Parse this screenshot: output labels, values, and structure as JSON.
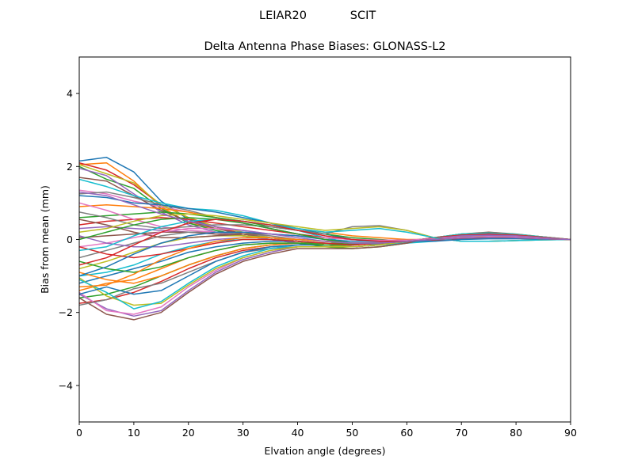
{
  "figure": {
    "suptitle_left": "LEIAR20",
    "suptitle_right": "SCIT"
  },
  "chart_data": {
    "type": "line",
    "title": "Delta Antenna Phase Biases: GLONASS-L2",
    "xlabel": "Elvation angle (degrees)",
    "ylabel": "Bias from mean (mm)",
    "xlim": [
      0,
      90
    ],
    "ylim": [
      -5,
      5
    ],
    "xticks": [
      0,
      10,
      20,
      30,
      40,
      50,
      60,
      70,
      80,
      90
    ],
    "yticks": [
      -4,
      -2,
      0,
      2,
      4
    ],
    "ytick_labels": [
      "−4",
      "−2",
      "0",
      "2",
      "4"
    ],
    "grid": false,
    "x": [
      0,
      5,
      10,
      15,
      20,
      25,
      30,
      35,
      40,
      45,
      50,
      55,
      60,
      65,
      70,
      75,
      80,
      85,
      90
    ],
    "colors": [
      "#1f77b4",
      "#ff7f0e",
      "#2ca02c",
      "#d62728",
      "#9467bd",
      "#8c564b",
      "#e377c2",
      "#7f7f7f",
      "#bcbd22",
      "#17becf"
    ],
    "series": [
      {
        "values": [
          2.15,
          2.25,
          1.85,
          1.05,
          0.55,
          0.35,
          0.15,
          0.05,
          -0.05,
          -0.15,
          -0.2,
          -0.15,
          -0.05,
          0.05,
          0.1,
          0.1,
          0.08,
          0.04,
          0
        ]
      },
      {
        "values": [
          2.05,
          2.1,
          1.6,
          0.9,
          0.45,
          0.3,
          0.15,
          0.05,
          -0.05,
          -0.15,
          -0.2,
          -0.15,
          -0.05,
          0.05,
          0.1,
          0.1,
          0.08,
          0.04,
          0
        ]
      },
      {
        "values": [
          2.0,
          1.65,
          1.4,
          0.85,
          0.45,
          0.25,
          0.1,
          0.0,
          -0.1,
          -0.2,
          -0.25,
          -0.2,
          -0.1,
          0.0,
          0.05,
          0.07,
          0.05,
          0.03,
          0
        ]
      },
      {
        "values": [
          2.1,
          1.9,
          1.5,
          0.95,
          0.6,
          0.35,
          0.15,
          0.05,
          -0.05,
          -0.15,
          -0.2,
          -0.15,
          -0.05,
          0.05,
          0.1,
          0.1,
          0.08,
          0.04,
          0
        ]
      },
      {
        "values": [
          1.95,
          1.75,
          1.25,
          0.75,
          0.4,
          0.2,
          0.1,
          0.0,
          -0.1,
          -0.15,
          -0.2,
          -0.15,
          -0.05,
          0.05,
          0.1,
          0.1,
          0.07,
          0.03,
          0
        ]
      },
      {
        "values": [
          1.7,
          1.6,
          1.2,
          0.8,
          0.5,
          0.3,
          0.15,
          0.05,
          -0.05,
          -0.15,
          -0.2,
          -0.15,
          -0.05,
          0.05,
          0.1,
          0.1,
          0.07,
          0.03,
          0
        ]
      },
      {
        "values": [
          1.35,
          1.25,
          1.05,
          0.9,
          0.75,
          0.6,
          0.45,
          0.3,
          0.15,
          0.0,
          -0.1,
          -0.12,
          -0.08,
          -0.02,
          0.05,
          0.08,
          0.07,
          0.03,
          0
        ]
      },
      {
        "values": [
          1.25,
          1.3,
          1.15,
          0.95,
          0.8,
          0.6,
          0.45,
          0.3,
          0.15,
          0.0,
          -0.1,
          -0.12,
          -0.08,
          -0.02,
          0.05,
          0.08,
          0.07,
          0.03,
          0
        ]
      },
      {
        "values": [
          2.05,
          1.8,
          1.55,
          0.95,
          0.6,
          0.35,
          0.2,
          0.05,
          -0.05,
          -0.15,
          -0.2,
          -0.15,
          -0.05,
          0.05,
          0.1,
          0.1,
          0.07,
          0.03,
          0
        ]
      },
      {
        "values": [
          1.65,
          1.45,
          1.2,
          1.0,
          0.85,
          0.8,
          0.65,
          0.45,
          0.25,
          0.05,
          -0.1,
          -0.15,
          -0.1,
          -0.05,
          0.03,
          0.07,
          0.06,
          0.03,
          0
        ]
      },
      {
        "values": [
          1.2,
          1.15,
          1.0,
          0.95,
          0.85,
          0.75,
          0.6,
          0.45,
          0.3,
          0.15,
          0.0,
          -0.05,
          -0.05,
          0.0,
          0.05,
          0.07,
          0.05,
          0.02,
          0
        ]
      },
      {
        "values": [
          0.9,
          0.95,
          0.9,
          0.85,
          0.75,
          0.6,
          0.5,
          0.4,
          0.3,
          0.2,
          0.1,
          0.05,
          0.0,
          0.0,
          0.03,
          0.05,
          0.04,
          0.02,
          0
        ]
      },
      {
        "values": [
          0.6,
          0.65,
          0.7,
          0.75,
          0.7,
          0.6,
          0.5,
          0.35,
          0.25,
          0.15,
          0.05,
          0.0,
          -0.05,
          -0.02,
          0.02,
          0.05,
          0.04,
          0.02,
          0
        ]
      },
      {
        "values": [
          0.4,
          0.5,
          0.55,
          0.6,
          0.55,
          0.45,
          0.35,
          0.25,
          0.15,
          0.05,
          0.0,
          -0.05,
          -0.05,
          -0.02,
          0.02,
          0.04,
          0.04,
          0.02,
          0
        ]
      },
      {
        "values": [
          0.3,
          0.35,
          0.3,
          0.25,
          0.2,
          0.15,
          0.1,
          0.05,
          0.0,
          -0.05,
          -0.1,
          -0.1,
          -0.05,
          0.0,
          0.04,
          0.06,
          0.05,
          0.02,
          0
        ]
      },
      {
        "values": [
          0.05,
          0.1,
          0.15,
          0.2,
          0.2,
          0.15,
          0.1,
          0.05,
          0.0,
          -0.05,
          -0.1,
          -0.1,
          -0.05,
          0.0,
          0.04,
          0.06,
          0.05,
          0.02,
          0
        ]
      },
      {
        "values": [
          -0.2,
          -0.1,
          0.05,
          0.2,
          0.3,
          0.3,
          0.25,
          0.15,
          0.1,
          0.0,
          -0.1,
          -0.1,
          -0.05,
          0.0,
          0.04,
          0.06,
          0.05,
          0.02,
          0
        ]
      },
      {
        "values": [
          -0.5,
          -0.3,
          -0.1,
          0.1,
          0.2,
          0.2,
          0.15,
          0.1,
          0.0,
          -0.05,
          -0.1,
          -0.1,
          -0.05,
          0.0,
          0.04,
          0.06,
          0.05,
          0.02,
          0
        ]
      },
      {
        "values": [
          -0.8,
          -0.6,
          -0.35,
          -0.1,
          0.05,
          0.1,
          0.1,
          0.05,
          0.0,
          -0.05,
          -0.1,
          -0.1,
          -0.05,
          0.0,
          0.04,
          0.06,
          0.05,
          0.02,
          0
        ]
      },
      {
        "values": [
          -1.0,
          -0.9,
          -0.7,
          -0.4,
          -0.2,
          -0.05,
          0.0,
          0.0,
          -0.05,
          -0.1,
          -0.12,
          -0.1,
          -0.05,
          0.0,
          0.04,
          0.06,
          0.05,
          0.02,
          0
        ]
      },
      {
        "values": [
          -1.2,
          -1.0,
          -0.8,
          -0.6,
          -0.35,
          -0.2,
          -0.1,
          -0.05,
          -0.05,
          -0.1,
          -0.12,
          -0.1,
          -0.05,
          0.0,
          0.04,
          0.06,
          0.05,
          0.02,
          0
        ]
      },
      {
        "values": [
          -1.4,
          -1.2,
          -1.1,
          -0.8,
          -0.5,
          -0.3,
          -0.15,
          -0.1,
          -0.1,
          -0.1,
          -0.12,
          -0.1,
          -0.05,
          0.0,
          0.04,
          0.06,
          0.05,
          0.02,
          0
        ]
      },
      {
        "values": [
          -1.6,
          -1.5,
          -1.3,
          -1.0,
          -0.7,
          -0.45,
          -0.25,
          -0.15,
          -0.1,
          -0.1,
          -0.12,
          -0.1,
          -0.05,
          0.0,
          0.04,
          0.06,
          0.05,
          0.02,
          0
        ]
      },
      {
        "values": [
          -1.75,
          -1.65,
          -1.45,
          -1.15,
          -0.8,
          -0.5,
          -0.3,
          -0.2,
          -0.15,
          -0.15,
          -0.15,
          -0.1,
          -0.05,
          0.0,
          0.05,
          0.07,
          0.05,
          0.02,
          0
        ]
      },
      {
        "values": [
          -1.5,
          -1.9,
          -2.1,
          -1.95,
          -1.4,
          -0.9,
          -0.55,
          -0.35,
          -0.2,
          -0.2,
          -0.2,
          -0.15,
          -0.05,
          0.05,
          0.1,
          0.12,
          0.1,
          0.05,
          0
        ]
      },
      {
        "values": [
          -1.6,
          -2.05,
          -2.2,
          -2.0,
          -1.45,
          -0.95,
          -0.6,
          -0.4,
          -0.25,
          -0.25,
          -0.25,
          -0.2,
          -0.1,
          0.05,
          0.15,
          0.2,
          0.15,
          0.07,
          0
        ]
      },
      {
        "values": [
          -1.45,
          -1.95,
          -2.05,
          -1.85,
          -1.3,
          -0.85,
          -0.5,
          -0.3,
          -0.2,
          -0.2,
          -0.2,
          -0.15,
          -0.05,
          0.05,
          0.15,
          0.18,
          0.14,
          0.07,
          0
        ]
      },
      {
        "values": [
          -1.8,
          -1.65,
          -1.35,
          -1.2,
          -0.9,
          -0.6,
          -0.35,
          -0.25,
          -0.2,
          -0.2,
          -0.2,
          -0.15,
          -0.05,
          0.05,
          0.15,
          0.18,
          0.14,
          0.07,
          0
        ]
      },
      {
        "values": [
          -1.05,
          -1.55,
          -1.8,
          -1.75,
          -1.25,
          -0.8,
          -0.5,
          -0.3,
          -0.2,
          -0.2,
          -0.2,
          -0.15,
          -0.05,
          0.05,
          0.15,
          0.18,
          0.14,
          0.07,
          0
        ]
      },
      {
        "values": [
          -1.1,
          -1.45,
          -1.9,
          -1.7,
          -1.2,
          -0.75,
          -0.45,
          -0.25,
          -0.15,
          -0.15,
          -0.15,
          -0.1,
          -0.05,
          0.05,
          0.15,
          0.18,
          0.14,
          0.07,
          0
        ]
      },
      {
        "values": [
          -1.5,
          -1.3,
          -1.5,
          -1.4,
          -1.0,
          -0.6,
          -0.35,
          -0.2,
          -0.15,
          -0.15,
          -0.15,
          -0.1,
          -0.05,
          0.05,
          0.12,
          0.15,
          0.12,
          0.06,
          0
        ]
      },
      {
        "values": [
          -0.9,
          -1.1,
          -1.2,
          -1.0,
          -0.7,
          -0.45,
          -0.25,
          -0.15,
          -0.1,
          -0.15,
          -0.15,
          -0.1,
          -0.05,
          0.05,
          0.12,
          0.15,
          0.12,
          0.06,
          0
        ]
      },
      {
        "values": [
          -0.6,
          -0.8,
          -0.9,
          -0.75,
          -0.5,
          -0.3,
          -0.15,
          -0.1,
          -0.1,
          -0.15,
          -0.15,
          -0.1,
          -0.05,
          0.05,
          0.12,
          0.15,
          0.12,
          0.06,
          0
        ]
      },
      {
        "values": [
          -0.2,
          -0.4,
          -0.5,
          -0.4,
          -0.25,
          -0.1,
          0.0,
          0.0,
          -0.05,
          -0.1,
          -0.15,
          -0.1,
          -0.05,
          0.05,
          0.12,
          0.15,
          0.12,
          0.06,
          0
        ]
      },
      {
        "values": [
          0.1,
          -0.1,
          -0.2,
          -0.2,
          -0.1,
          0.0,
          0.05,
          0.05,
          0.0,
          -0.05,
          -0.1,
          -0.08,
          -0.03,
          0.03,
          0.1,
          0.12,
          0.1,
          0.05,
          0
        ]
      },
      {
        "values": [
          0.55,
          0.4,
          0.2,
          0.05,
          0.05,
          0.1,
          0.15,
          0.15,
          0.1,
          0.05,
          0.0,
          -0.02,
          -0.02,
          0.02,
          0.06,
          0.08,
          0.07,
          0.03,
          0
        ]
      },
      {
        "values": [
          1.0,
          0.8,
          0.55,
          0.35,
          0.25,
          0.2,
          0.2,
          0.15,
          0.1,
          0.05,
          0.0,
          -0.02,
          -0.02,
          0.02,
          0.06,
          0.08,
          0.07,
          0.03,
          0
        ]
      },
      {
        "values": [
          0.75,
          0.6,
          0.4,
          0.3,
          0.35,
          0.4,
          0.4,
          0.35,
          0.25,
          0.15,
          0.35,
          0.38,
          0.25,
          0.05,
          -0.05,
          -0.05,
          -0.03,
          -0.01,
          0
        ]
      },
      {
        "values": [
          0.2,
          0.3,
          0.5,
          0.65,
          0.7,
          0.65,
          0.55,
          0.45,
          0.35,
          0.25,
          0.3,
          0.35,
          0.25,
          0.05,
          -0.05,
          -0.05,
          -0.03,
          -0.01,
          0
        ]
      },
      {
        "values": [
          -0.3,
          -0.2,
          0.1,
          0.35,
          0.5,
          0.55,
          0.5,
          0.4,
          0.3,
          0.2,
          0.25,
          0.3,
          0.2,
          0.05,
          -0.05,
          -0.05,
          -0.03,
          -0.01,
          0
        ]
      },
      {
        "values": [
          -1.0,
          -0.75,
          -0.4,
          -0.1,
          0.1,
          0.2,
          0.2,
          0.15,
          0.1,
          0.0,
          -0.05,
          -0.05,
          -0.05,
          -0.05,
          0.0,
          0.02,
          0.02,
          0.01,
          0
        ]
      },
      {
        "values": [
          -1.3,
          -1.25,
          -0.95,
          -0.55,
          -0.25,
          -0.05,
          0.05,
          0.05,
          0.0,
          -0.05,
          -0.1,
          -0.1,
          -0.05,
          0.0,
          0.04,
          0.06,
          0.05,
          0.02,
          0
        ]
      },
      {
        "values": [
          0.0,
          0.2,
          0.4,
          0.55,
          0.6,
          0.55,
          0.45,
          0.3,
          0.15,
          0.0,
          -0.1,
          -0.1,
          -0.05,
          0.0,
          0.04,
          0.06,
          0.05,
          0.02,
          0
        ]
      },
      {
        "values": [
          -0.7,
          -0.5,
          -0.15,
          0.2,
          0.45,
          0.55,
          0.5,
          0.4,
          0.25,
          0.1,
          0.0,
          -0.05,
          -0.05,
          0.0,
          0.04,
          0.06,
          0.05,
          0.02,
          0
        ]
      },
      {
        "values": [
          1.3,
          1.2,
          0.95,
          0.7,
          0.5,
          0.35,
          0.25,
          0.15,
          0.05,
          -0.05,
          -0.1,
          -0.1,
          -0.05,
          0.0,
          0.04,
          0.06,
          0.05,
          0.02,
          0
        ]
      }
    ]
  }
}
